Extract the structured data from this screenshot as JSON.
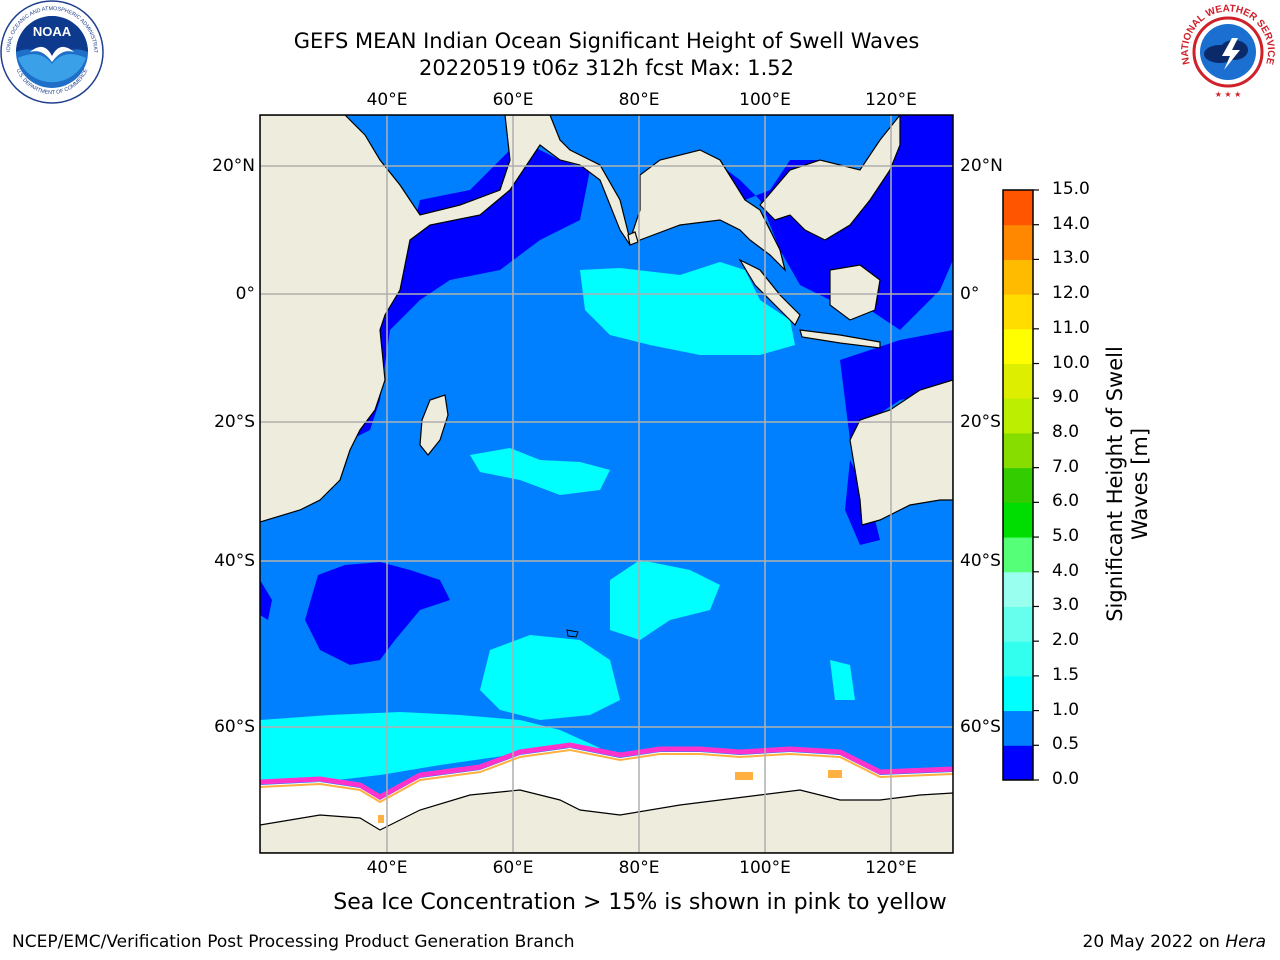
{
  "header": {
    "title_line1": "GEFS MEAN Indian Ocean Significant Height of Swell Waves",
    "title_line2": "20220519 t06z 312h fcst   Max: 1.52"
  },
  "logos": {
    "left_text_top": "NATIONAL OCEANIC AND ATMOSPHERIC ADMINISTRATION",
    "left_text_bottom": "U.S. DEPARTMENT OF COMMERCE",
    "left_center": "NOAA",
    "right_text": "NATIONAL WEATHER SERVICE"
  },
  "map": {
    "lon_labels": [
      "40°E",
      "60°E",
      "80°E",
      "100°E",
      "120°E"
    ],
    "lat_labels": [
      "20°N",
      "0°",
      "20°S",
      "40°S",
      "60°S"
    ],
    "colors": {
      "land": "#EEECDC",
      "ice": "#FFFFFF",
      "band_0_0_5": "#0000FF",
      "band_0_5_1_0": "#0080FF",
      "band_1_0_1_5": "#00FFFF",
      "ice_edge_pink": "#FF33CC",
      "ice_edge_orange": "#FFB040"
    }
  },
  "colorbar": {
    "label": "Significant Height of Swell Waves [m]",
    "ticks": [
      "0.0",
      "0.5",
      "1.0",
      "1.5",
      "2.0",
      "3.0",
      "4.0",
      "5.0",
      "6.0",
      "7.0",
      "8.0",
      "9.0",
      "10.0",
      "11.0",
      "12.0",
      "13.0",
      "14.0",
      "15.0"
    ],
    "colors": [
      "#0000FF",
      "#0080FF",
      "#00FFFF",
      "#33FFEE",
      "#66FFEE",
      "#99FFEE",
      "#55FF77",
      "#00DD00",
      "#33CC00",
      "#88DD00",
      "#BBEE00",
      "#DDEE00",
      "#FFFF00",
      "#FFDD00",
      "#FFBB00",
      "#FF8800",
      "#FF5500",
      "#FF2200",
      "#FF0000"
    ]
  },
  "caption": "Sea Ice Concentration > 15% is shown in pink to yellow",
  "footer": {
    "left": "NCEP/EMC/Verification Post Processing Product Generation Branch",
    "right_prefix": "20 May 2022 on ",
    "right_italic": "Hera"
  }
}
